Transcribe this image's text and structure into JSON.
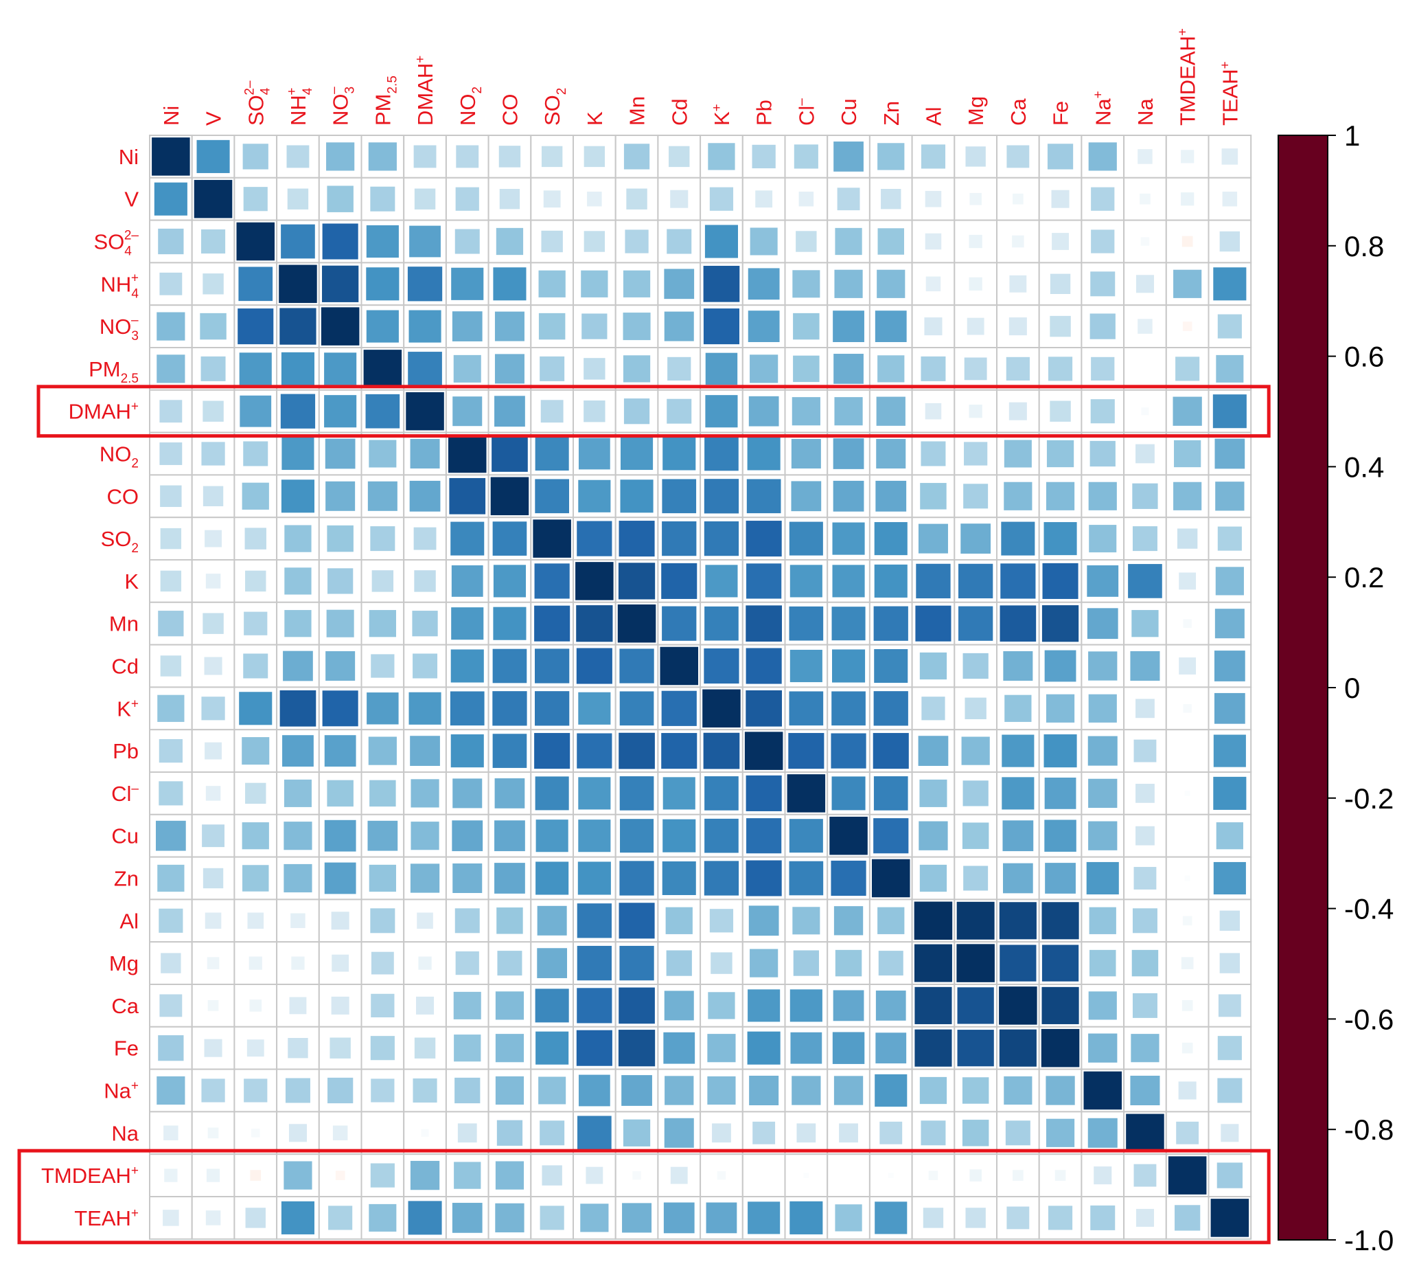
{
  "chart_data": {
    "type": "heatmap",
    "title": "",
    "variables": [
      {
        "base": "Ni"
      },
      {
        "base": "V"
      },
      {
        "base": "SO",
        "sub": "4",
        "sup": "2–"
      },
      {
        "base": "NH",
        "sub": "4",
        "sup": "+"
      },
      {
        "base": "NO",
        "sub": "3",
        "sup": "–"
      },
      {
        "base": "PM",
        "sub": "2.5"
      },
      {
        "base": "DMAH",
        "sup": "+"
      },
      {
        "base": "NO",
        "sub": "2"
      },
      {
        "base": "CO"
      },
      {
        "base": "SO",
        "sub": "2"
      },
      {
        "base": "K"
      },
      {
        "base": "Mn"
      },
      {
        "base": "Cd"
      },
      {
        "base": "K",
        "sup": "+"
      },
      {
        "base": "Pb"
      },
      {
        "base": "Cl",
        "sup": "–"
      },
      {
        "base": "Cu"
      },
      {
        "base": "Zn"
      },
      {
        "base": "Al"
      },
      {
        "base": "Mg"
      },
      {
        "base": "Ca"
      },
      {
        "base": "Fe"
      },
      {
        "base": "Na",
        "sup": "+"
      },
      {
        "base": "Na"
      },
      {
        "base": "TMDEAH",
        "sup": "+"
      },
      {
        "base": "TEAH",
        "sup": "+"
      }
    ],
    "matrix": [
      [
        1,
        0.75,
        0.45,
        0.35,
        0.55,
        0.55,
        0.35,
        0.35,
        0.32,
        0.3,
        0.3,
        0.45,
        0.3,
        0.5,
        0.38,
        0.4,
        0.62,
        0.5,
        0.4,
        0.28,
        0.35,
        0.45,
        0.55,
        0.15,
        0.12,
        0.18
      ],
      [
        0.75,
        1,
        0.4,
        0.3,
        0.48,
        0.42,
        0.3,
        0.38,
        0.28,
        0.2,
        0.15,
        0.3,
        0.22,
        0.38,
        0.2,
        0.15,
        0.35,
        0.28,
        0.18,
        0.1,
        0.08,
        0.22,
        0.38,
        0.08,
        0.12,
        0.15
      ],
      [
        0.45,
        0.4,
        1,
        0.8,
        0.88,
        0.72,
        0.68,
        0.42,
        0.5,
        0.32,
        0.3,
        0.38,
        0.42,
        0.75,
        0.52,
        0.3,
        0.5,
        0.48,
        0.18,
        0.12,
        0.1,
        0.2,
        0.38,
        0.05,
        -0.08,
        0.28
      ],
      [
        0.35,
        0.3,
        0.8,
        1,
        0.92,
        0.75,
        0.82,
        0.72,
        0.75,
        0.5,
        0.5,
        0.5,
        0.62,
        0.9,
        0.68,
        0.52,
        0.55,
        0.55,
        0.15,
        0.12,
        0.2,
        0.28,
        0.42,
        0.22,
        0.55,
        0.75
      ],
      [
        0.55,
        0.48,
        0.88,
        0.92,
        1,
        0.72,
        0.72,
        0.62,
        0.6,
        0.48,
        0.45,
        0.52,
        0.6,
        0.88,
        0.68,
        0.48,
        0.68,
        0.68,
        0.22,
        0.2,
        0.22,
        0.3,
        0.45,
        0.15,
        -0.06,
        0.4
      ],
      [
        0.55,
        0.42,
        0.72,
        0.75,
        0.72,
        1,
        0.8,
        0.52,
        0.6,
        0.42,
        0.32,
        0.5,
        0.38,
        0.7,
        0.55,
        0.48,
        0.62,
        0.5,
        0.42,
        0.35,
        0.38,
        0.4,
        0.38,
        0,
        0.4,
        0.52
      ],
      [
        0.35,
        0.3,
        0.68,
        0.82,
        0.72,
        0.8,
        1,
        0.6,
        0.65,
        0.35,
        0.32,
        0.45,
        0.42,
        0.72,
        0.62,
        0.55,
        0.55,
        0.58,
        0.18,
        0.12,
        0.22,
        0.3,
        0.4,
        0.04,
        0.58,
        0.78
      ],
      [
        0.35,
        0.38,
        0.42,
        0.72,
        0.62,
        0.52,
        0.6,
        1,
        0.9,
        0.78,
        0.68,
        0.72,
        0.75,
        0.8,
        0.75,
        0.6,
        0.65,
        0.6,
        0.42,
        0.38,
        0.52,
        0.5,
        0.45,
        0.25,
        0.5,
        0.62
      ],
      [
        0.32,
        0.28,
        0.5,
        0.75,
        0.6,
        0.6,
        0.65,
        0.9,
        1,
        0.8,
        0.72,
        0.75,
        0.8,
        0.82,
        0.8,
        0.62,
        0.65,
        0.65,
        0.48,
        0.42,
        0.55,
        0.55,
        0.55,
        0.45,
        0.55,
        0.58
      ],
      [
        0.3,
        0.2,
        0.32,
        0.5,
        0.48,
        0.42,
        0.35,
        0.78,
        0.8,
        1,
        0.85,
        0.88,
        0.82,
        0.82,
        0.88,
        0.78,
        0.72,
        0.75,
        0.6,
        0.62,
        0.78,
        0.75,
        0.52,
        0.42,
        0.28,
        0.4
      ],
      [
        0.3,
        0.15,
        0.3,
        0.5,
        0.45,
        0.32,
        0.32,
        0.68,
        0.72,
        0.85,
        1,
        0.92,
        0.88,
        0.72,
        0.85,
        0.72,
        0.72,
        0.75,
        0.82,
        0.82,
        0.85,
        0.88,
        0.68,
        0.8,
        0.2,
        0.55
      ],
      [
        0.45,
        0.3,
        0.38,
        0.5,
        0.52,
        0.5,
        0.45,
        0.72,
        0.75,
        0.88,
        0.92,
        1,
        0.82,
        0.8,
        0.9,
        0.8,
        0.78,
        0.82,
        0.88,
        0.82,
        0.9,
        0.92,
        0.65,
        0.5,
        0.05,
        0.6
      ],
      [
        0.3,
        0.22,
        0.42,
        0.62,
        0.6,
        0.38,
        0.42,
        0.75,
        0.8,
        0.82,
        0.88,
        0.82,
        1,
        0.85,
        0.88,
        0.72,
        0.75,
        0.78,
        0.5,
        0.45,
        0.6,
        0.68,
        0.58,
        0.6,
        0.2,
        0.65
      ],
      [
        0.5,
        0.38,
        0.75,
        0.9,
        0.88,
        0.7,
        0.72,
        0.8,
        0.82,
        0.82,
        0.72,
        0.8,
        0.85,
        1,
        0.9,
        0.8,
        0.8,
        0.82,
        0.38,
        0.32,
        0.5,
        0.55,
        0.55,
        0.25,
        0.05,
        0.65
      ],
      [
        0.38,
        0.2,
        0.52,
        0.68,
        0.68,
        0.55,
        0.62,
        0.75,
        0.8,
        0.88,
        0.85,
        0.9,
        0.88,
        0.9,
        1,
        0.88,
        0.85,
        0.88,
        0.62,
        0.55,
        0.72,
        0.75,
        0.6,
        0.35,
        0,
        0.72
      ],
      [
        0.4,
        0.15,
        0.3,
        0.52,
        0.48,
        0.48,
        0.55,
        0.6,
        0.62,
        0.78,
        0.72,
        0.8,
        0.72,
        0.8,
        0.88,
        1,
        0.78,
        0.8,
        0.52,
        0.45,
        0.72,
        0.68,
        0.58,
        0.25,
        0.02,
        0.75
      ],
      [
        0.62,
        0.35,
        0.5,
        0.55,
        0.68,
        0.62,
        0.55,
        0.65,
        0.65,
        0.72,
        0.72,
        0.78,
        0.75,
        0.8,
        0.85,
        0.78,
        1,
        0.85,
        0.58,
        0.48,
        0.65,
        0.7,
        0.58,
        0.25,
        0,
        0.5
      ],
      [
        0.5,
        0.28,
        0.48,
        0.55,
        0.68,
        0.5,
        0.58,
        0.6,
        0.65,
        0.75,
        0.75,
        0.82,
        0.78,
        0.82,
        0.88,
        0.8,
        0.85,
        1,
        0.5,
        0.42,
        0.62,
        0.65,
        0.72,
        0.35,
        0.02,
        0.72
      ],
      [
        0.4,
        0.18,
        0.18,
        0.15,
        0.22,
        0.42,
        0.18,
        0.42,
        0.48,
        0.6,
        0.82,
        0.88,
        0.5,
        0.38,
        0.62,
        0.52,
        0.58,
        0.5,
        1,
        0.98,
        0.95,
        0.95,
        0.5,
        0.42,
        0.06,
        0.28
      ],
      [
        0.28,
        0.1,
        0.12,
        0.12,
        0.2,
        0.35,
        0.12,
        0.38,
        0.42,
        0.62,
        0.82,
        0.82,
        0.45,
        0.32,
        0.55,
        0.45,
        0.48,
        0.42,
        0.98,
        1,
        0.92,
        0.92,
        0.48,
        0.48,
        0.1,
        0.28
      ],
      [
        0.35,
        0.08,
        0.1,
        0.2,
        0.22,
        0.38,
        0.22,
        0.52,
        0.55,
        0.78,
        0.85,
        0.9,
        0.6,
        0.5,
        0.72,
        0.72,
        0.65,
        0.62,
        0.95,
        0.92,
        1,
        0.95,
        0.55,
        0.42,
        0.08,
        0.35
      ],
      [
        0.45,
        0.22,
        0.2,
        0.28,
        0.3,
        0.4,
        0.3,
        0.5,
        0.55,
        0.75,
        0.88,
        0.92,
        0.68,
        0.55,
        0.75,
        0.68,
        0.7,
        0.65,
        0.95,
        0.92,
        0.95,
        1,
        0.58,
        0.55,
        0.08,
        0.4
      ],
      [
        0.55,
        0.38,
        0.38,
        0.42,
        0.45,
        0.38,
        0.4,
        0.45,
        0.55,
        0.52,
        0.68,
        0.65,
        0.58,
        0.55,
        0.6,
        0.58,
        0.58,
        0.72,
        0.5,
        0.48,
        0.55,
        0.58,
        1,
        0.6,
        0.22,
        0.42
      ],
      [
        0.15,
        0.08,
        0.05,
        0.22,
        0.15,
        0,
        0.04,
        0.25,
        0.45,
        0.42,
        0.8,
        0.5,
        0.6,
        0.25,
        0.35,
        0.25,
        0.25,
        0.35,
        0.42,
        0.48,
        0.42,
        0.55,
        0.6,
        1,
        0.35,
        0.22
      ],
      [
        0.12,
        0.12,
        -0.08,
        0.55,
        -0.06,
        0.4,
        0.58,
        0.5,
        0.55,
        0.28,
        0.2,
        0.05,
        0.2,
        0.05,
        0,
        0.02,
        0,
        0.02,
        0.06,
        0.1,
        0.08,
        0.08,
        0.22,
        0.35,
        1,
        0.45
      ],
      [
        0.18,
        0.15,
        0.28,
        0.75,
        0.4,
        0.52,
        0.78,
        0.62,
        0.58,
        0.4,
        0.55,
        0.6,
        0.65,
        0.65,
        0.72,
        0.75,
        0.5,
        0.72,
        0.28,
        0.28,
        0.35,
        0.4,
        0.42,
        0.22,
        0.45,
        1
      ]
    ],
    "color_scale": {
      "min": -1.0,
      "max": 1,
      "ticks": [
        "1",
        "0.8",
        "0.6",
        "0.4",
        "0.2",
        "0",
        "-0.2",
        "-0.4",
        "-0.6",
        "-0.8",
        "-1.0"
      ],
      "stops": [
        {
          "v": -1.0,
          "color": "#67001f"
        },
        {
          "v": -0.75,
          "color": "#d6604d"
        },
        {
          "v": -0.5,
          "color": "#f4a582"
        },
        {
          "v": -0.25,
          "color": "#fddbc7"
        },
        {
          "v": 0,
          "color": "#ffffff"
        },
        {
          "v": 0.25,
          "color": "#d1e5f0"
        },
        {
          "v": 0.5,
          "color": "#92c5de"
        },
        {
          "v": 0.75,
          "color": "#4393c3"
        },
        {
          "v": 0.875,
          "color": "#2166ac"
        },
        {
          "v": 1,
          "color": "#053061"
        }
      ]
    },
    "highlighted_rows": [
      "DMAH+",
      "TMDEAH+ / TEAH+"
    ],
    "label_color": "#e8141c",
    "highlight_color": "#e8141c",
    "cell_border_color": "#c8c8c8"
  }
}
